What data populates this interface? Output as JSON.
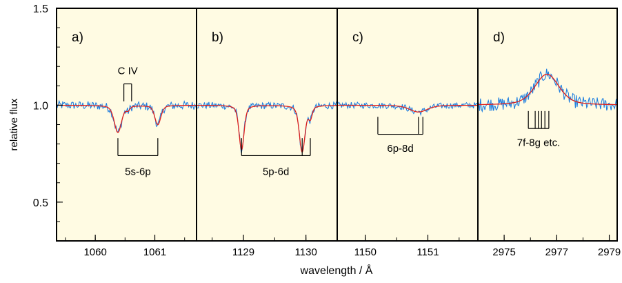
{
  "chart_data": {
    "type": "line",
    "ylabel": "relative flux",
    "xlabel": "wavelength / Å",
    "ylim": [
      0.3,
      1.5
    ],
    "yticks": [
      0.5,
      1.0,
      1.5
    ],
    "ytick_labels": [
      "0.5",
      "1.0",
      "1.5"
    ],
    "colors": {
      "observed": "#1e7fe0",
      "model": "#e0201c",
      "background": "#fffbe3"
    },
    "panels": [
      {
        "label": "a)",
        "xlim": [
          1059.35,
          1061.7
        ],
        "xticks": [
          1060,
          1061
        ],
        "xtick_labels": [
          "1060",
          "1061"
        ],
        "lines": [
          {
            "center": 1060.38,
            "depth": 0.14,
            "width": 0.06
          },
          {
            "center": 1061.05,
            "depth": 0.1,
            "width": 0.05
          },
          {
            "center": 1060.55,
            "depth": 0.02,
            "width": 0.03
          }
        ],
        "noise": 0.022,
        "markers": [
          {
            "label": "C IV",
            "ticks": [
              1060.48,
              1060.61
            ],
            "y_top": 1.11,
            "y_bottom": 1.02,
            "style": "down",
            "label_y": 1.16
          },
          {
            "label": "5s-6p",
            "ticks": [
              1060.38,
              1061.05
            ],
            "y_top": 0.83,
            "y_bottom": 0.74,
            "style": "up",
            "label_y": 0.64
          }
        ]
      },
      {
        "label": "b)",
        "xlim": [
          1128.25,
          1130.5
        ],
        "xticks": [
          1129,
          1130
        ],
        "xtick_labels": [
          "1129",
          "1130"
        ],
        "lines": [
          {
            "center": 1128.97,
            "depth": 0.23,
            "width": 0.04
          },
          {
            "center": 1129.94,
            "depth": 0.24,
            "width": 0.045
          },
          {
            "center": 1130.07,
            "depth": 0.06,
            "width": 0.03
          }
        ],
        "noise": 0.018,
        "markers": [
          {
            "label": "5p-6d",
            "ticks": [
              1128.97,
              1129.94,
              1130.07
            ],
            "y_top": 0.83,
            "y_bottom": 0.74,
            "style": "up",
            "label_y": 0.64
          }
        ]
      },
      {
        "label": "c)",
        "xlim": [
          1149.55,
          1151.8
        ],
        "xticks": [
          1150,
          1151
        ],
        "xtick_labels": [
          "1150",
          "1151"
        ],
        "lines": [
          {
            "center": 1150.85,
            "depth": 0.035,
            "width": 0.14
          }
        ],
        "noise": 0.016,
        "markers": [
          {
            "label": "6p-8d",
            "ticks": [
              1150.2,
              1150.85,
              1150.92
            ],
            "y_top": 0.94,
            "y_bottom": 0.85,
            "style": "up",
            "label_y": 0.76
          }
        ]
      },
      {
        "label": "d)",
        "xlim": [
          2974.0,
          2979.3
        ],
        "xticks": [
          2975,
          2977,
          2979
        ],
        "xtick_labels": [
          "2975",
          "2977",
          "2979"
        ],
        "lines": [
          {
            "center": 2976.63,
            "depth": -0.16,
            "width": 0.45
          }
        ],
        "noise": 0.035,
        "markers": [
          {
            "label": "7f-8g etc.",
            "ticks": [
              2975.92,
              2976.18,
              2976.3,
              2976.42,
              2976.55,
              2976.7
            ],
            "y_top": 0.97,
            "y_bottom": 0.88,
            "style": "up",
            "label_y": 0.79
          }
        ]
      }
    ]
  }
}
